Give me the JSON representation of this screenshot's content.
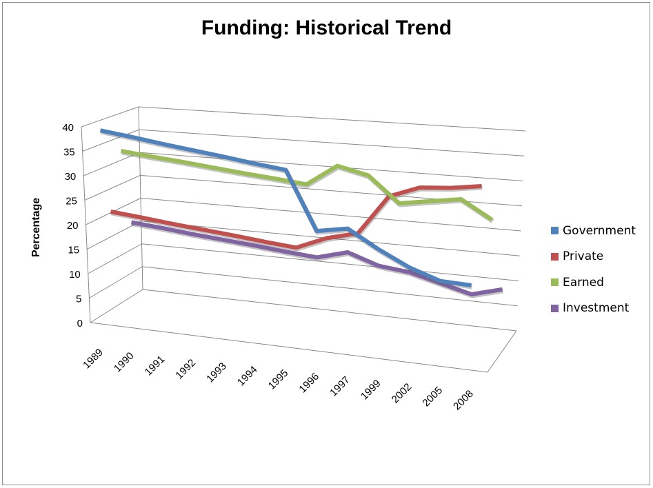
{
  "chart_data": {
    "type": "line",
    "title": "Funding: Historical Trend",
    "xlabel": "",
    "ylabel": "Percentage",
    "ylim": [
      0,
      40
    ],
    "yticks": [
      "0",
      "5",
      "10",
      "15",
      "20",
      "25",
      "30",
      "35",
      "40"
    ],
    "categories": [
      "1989",
      "1990",
      "1991",
      "1992",
      "1993",
      "1994",
      "1995",
      "1996",
      "1997",
      "1999",
      "2002",
      "2005",
      "2008"
    ],
    "grid": true,
    "legend_position": "right",
    "series": [
      {
        "name": "Government",
        "color": "#4f81bd",
        "values": [
          38,
          37.7,
          37.3,
          37,
          36.7,
          36.3,
          36,
          24,
          25.5,
          22,
          19,
          17,
          17
        ]
      },
      {
        "name": "Private",
        "color": "#c0504d",
        "values": [
          20,
          19.7,
          19.3,
          19,
          18.7,
          18.3,
          18,
          21,
          23,
          32,
          35,
          36,
          37.5
        ]
      },
      {
        "name": "Earned",
        "color": "#9bbb59",
        "values": [
          31,
          30.8,
          30.7,
          30.5,
          30.3,
          30.2,
          30,
          35,
          34,
          29,
          30.5,
          32,
          28.5
        ]
      },
      {
        "name": "Investment",
        "color": "#8064a2",
        "values": [
          15,
          14.7,
          14.3,
          14,
          13.7,
          13.3,
          13,
          15,
          13,
          12.5,
          11,
          9.5,
          11.5
        ]
      }
    ]
  }
}
